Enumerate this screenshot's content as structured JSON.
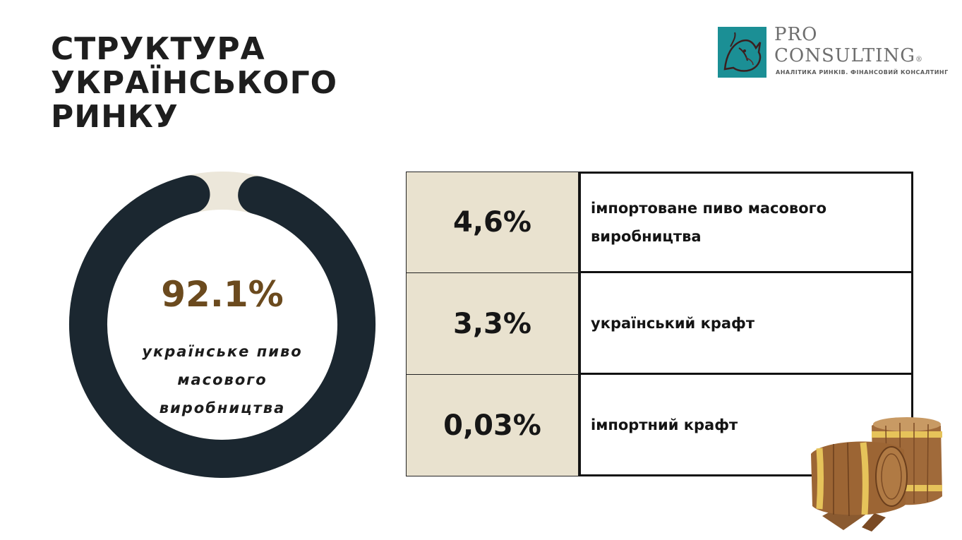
{
  "title": {
    "line1": "СТРУКТУРА",
    "line2": "УКРАЇНСЬКОГО",
    "line3": "РИНКУ"
  },
  "logo": {
    "pro": "PRO",
    "consulting": "CONSULTING",
    "registered": "®",
    "tagline": "АНАЛІТИКА РИНКІВ. ФІНАНСОВИЙ КОНСАЛТИНГ"
  },
  "colors": {
    "donut_main": "#1b2730",
    "donut_rest": "#ece7da",
    "accent_brown": "#6b4a1e",
    "table_fill": "#e9e2cf",
    "logo_teal": "#1b8f95"
  },
  "chart_data": {
    "type": "pie",
    "categories": [
      "українське пиво масового виробництва",
      "імпортоване пиво масового виробництва",
      "український крафт",
      "імпортний крафт"
    ],
    "values": [
      92.1,
      4.6,
      3.3,
      0.03
    ],
    "center": {
      "value": "92.1%",
      "label": "українське пиво масового виробництва"
    },
    "table": [
      {
        "value": "4,6%",
        "label": "імпортоване пиво масового виробництва"
      },
      {
        "value": "3,3%",
        "label": "український крафт"
      },
      {
        "value": "0,03%",
        "label": "імпортний крафт"
      }
    ]
  }
}
